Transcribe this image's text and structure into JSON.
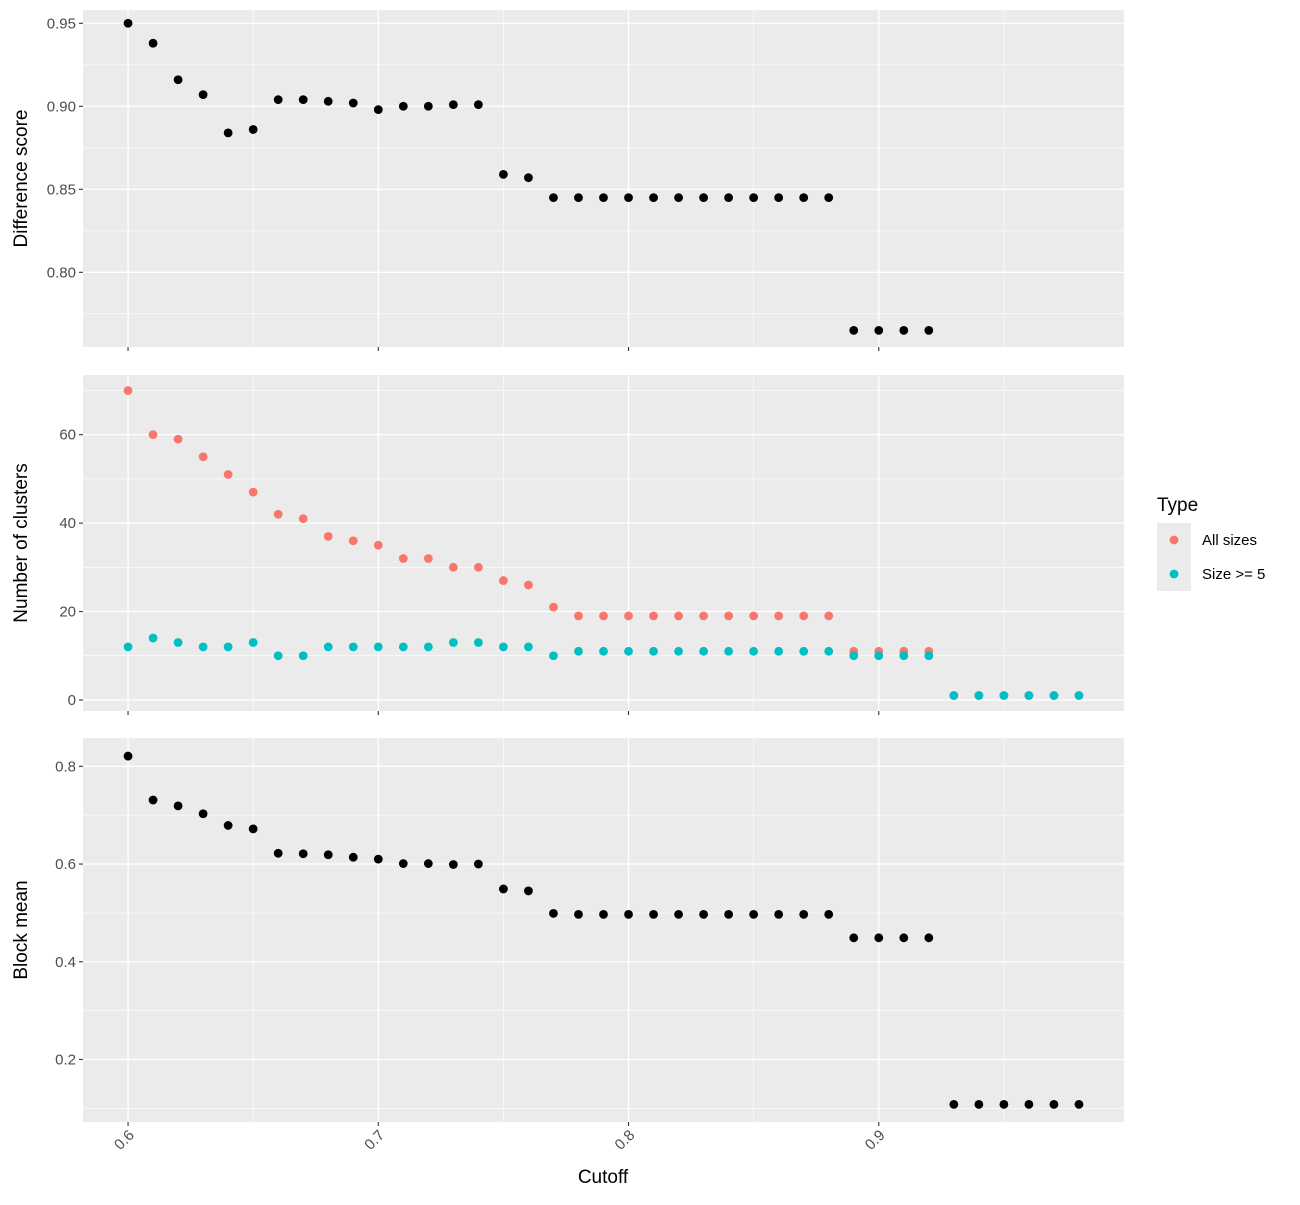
{
  "chart_data": {
    "type": "scatter",
    "xlabel": "Cutoff",
    "x_ticks": [
      "0.6",
      "0.7",
      "0.8",
      "0.9"
    ],
    "x_tick_values": [
      0.6,
      0.7,
      0.8,
      0.9
    ],
    "xlim": [
      0.582,
      0.998
    ],
    "grid": true,
    "legend": {
      "title": "Type",
      "placement": "right",
      "entries": [
        {
          "label": "All sizes",
          "color": "#F8766D"
        },
        {
          "label": "Size >= 5",
          "color": "#00BFC4"
        }
      ]
    },
    "panels": [
      {
        "ylabel": "Difference score",
        "ylim": [
          0.755,
          0.958
        ],
        "y_ticks": [
          "0.80",
          "0.85",
          "0.90",
          "0.95"
        ],
        "y_tick_values": [
          0.8,
          0.85,
          0.9,
          0.95
        ],
        "series": [
          {
            "color": "#000000",
            "x": [
              0.6,
              0.61,
              0.62,
              0.63,
              0.64,
              0.65,
              0.66,
              0.67,
              0.68,
              0.69,
              0.7,
              0.71,
              0.72,
              0.73,
              0.74,
              0.75,
              0.76,
              0.77,
              0.78,
              0.79,
              0.8,
              0.81,
              0.82,
              0.83,
              0.84,
              0.85,
              0.86,
              0.87,
              0.88,
              0.89,
              0.9,
              0.91,
              0.92
            ],
            "y": [
              0.95,
              0.938,
              0.916,
              0.907,
              0.884,
              0.886,
              0.904,
              0.904,
              0.903,
              0.902,
              0.898,
              0.9,
              0.9,
              0.901,
              0.901,
              0.859,
              0.857,
              0.845,
              0.845,
              0.845,
              0.845,
              0.845,
              0.845,
              0.845,
              0.845,
              0.845,
              0.845,
              0.845,
              0.845,
              0.765,
              0.765,
              0.765,
              0.765
            ]
          }
        ]
      },
      {
        "ylabel": "Number of clusters",
        "ylim": [
          -2.5,
          73.5
        ],
        "y_ticks": [
          "0",
          "20",
          "40",
          "60"
        ],
        "y_tick_values": [
          0,
          20,
          40,
          60
        ],
        "series": [
          {
            "name": "All sizes",
            "color": "#F8766D",
            "x": [
              0.6,
              0.61,
              0.62,
              0.63,
              0.64,
              0.65,
              0.66,
              0.67,
              0.68,
              0.69,
              0.7,
              0.71,
              0.72,
              0.73,
              0.74,
              0.75,
              0.76,
              0.77,
              0.78,
              0.79,
              0.8,
              0.81,
              0.82,
              0.83,
              0.84,
              0.85,
              0.86,
              0.87,
              0.88,
              0.89,
              0.9,
              0.91,
              0.92,
              0.93,
              0.94,
              0.95,
              0.96,
              0.97,
              0.98
            ],
            "y": [
              70,
              60,
              59,
              55,
              51,
              47,
              42,
              41,
              37,
              36,
              35,
              32,
              32,
              30,
              30,
              27,
              26,
              21,
              19,
              19,
              19,
              19,
              19,
              19,
              19,
              19,
              19,
              19,
              19,
              11,
              11,
              11,
              11,
              1,
              1,
              1,
              1,
              1,
              1
            ]
          },
          {
            "name": "Size >= 5",
            "color": "#00BFC4",
            "x": [
              0.6,
              0.61,
              0.62,
              0.63,
              0.64,
              0.65,
              0.66,
              0.67,
              0.68,
              0.69,
              0.7,
              0.71,
              0.72,
              0.73,
              0.74,
              0.75,
              0.76,
              0.77,
              0.78,
              0.79,
              0.8,
              0.81,
              0.82,
              0.83,
              0.84,
              0.85,
              0.86,
              0.87,
              0.88,
              0.89,
              0.9,
              0.91,
              0.92,
              0.93,
              0.94,
              0.95,
              0.96,
              0.97,
              0.98
            ],
            "y": [
              12,
              14,
              13,
              12,
              12,
              13,
              10,
              10,
              12,
              12,
              12,
              12,
              12,
              13,
              13,
              12,
              12,
              10,
              11,
              11,
              11,
              11,
              11,
              11,
              11,
              11,
              11,
              11,
              11,
              10,
              10,
              10,
              10,
              1,
              1,
              1,
              1,
              1,
              1
            ]
          }
        ]
      },
      {
        "ylabel": "Block mean",
        "ylim": [
          0.072,
          0.858
        ],
        "y_ticks": [
          "0.2",
          "0.4",
          "0.6",
          "0.8"
        ],
        "y_tick_values": [
          0.2,
          0.4,
          0.6,
          0.8
        ],
        "series": [
          {
            "color": "#000000",
            "x": [
              0.6,
              0.61,
              0.62,
              0.63,
              0.64,
              0.65,
              0.66,
              0.67,
              0.68,
              0.69,
              0.7,
              0.71,
              0.72,
              0.73,
              0.74,
              0.75,
              0.76,
              0.77,
              0.78,
              0.79,
              0.8,
              0.81,
              0.82,
              0.83,
              0.84,
              0.85,
              0.86,
              0.87,
              0.88,
              0.89,
              0.9,
              0.91,
              0.92,
              0.93,
              0.94,
              0.95,
              0.96,
              0.97,
              0.98
            ],
            "y": [
              0.821,
              0.731,
              0.719,
              0.703,
              0.679,
              0.672,
              0.622,
              0.621,
              0.619,
              0.614,
              0.61,
              0.601,
              0.601,
              0.599,
              0.6,
              0.549,
              0.545,
              0.499,
              0.497,
              0.497,
              0.497,
              0.497,
              0.497,
              0.497,
              0.497,
              0.497,
              0.497,
              0.497,
              0.497,
              0.449,
              0.449,
              0.449,
              0.449,
              0.108,
              0.108,
              0.108,
              0.108,
              0.108,
              0.108
            ]
          }
        ]
      }
    ]
  }
}
